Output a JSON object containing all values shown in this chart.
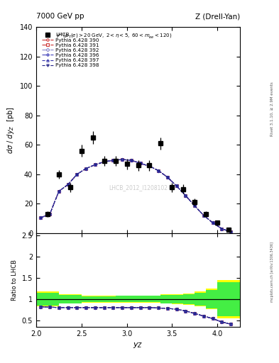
{
  "title_left": "7000 GeV pp",
  "title_right": "Z (Drell-Yan)",
  "watermark": "LHCB_2012_I1208102",
  "ylabel_main": "d#sigma / dy_{Z}  [pb]",
  "ylabel_ratio": "Ratio to LHCB",
  "xlabel": "y_{Z}",
  "ylim_main": [
    0,
    140
  ],
  "ylim_ratio": [
    0.35,
    2.55
  ],
  "yticks_main": [
    0,
    20,
    40,
    60,
    80,
    100,
    120,
    140
  ],
  "yticks_ratio": [
    0.5,
    1.0,
    1.5,
    2.0,
    2.5
  ],
  "xlim": [
    2.0,
    4.25
  ],
  "xticks": [
    2.0,
    2.5,
    3.0,
    3.5,
    4.0
  ],
  "lhcb_x": [
    2.125,
    2.25,
    2.375,
    2.5,
    2.625,
    2.75,
    2.875,
    3.0,
    3.125,
    3.25,
    3.375,
    3.5,
    3.625,
    3.75,
    3.875,
    4.0,
    4.125
  ],
  "lhcb_y": [
    13.0,
    40.0,
    31.0,
    56.0,
    65.0,
    49.0,
    49.0,
    47.0,
    46.0,
    46.0,
    61.0,
    31.0,
    30.0,
    21.0,
    13.0,
    7.0,
    2.5
  ],
  "lhcb_yerr": [
    2.0,
    3.0,
    3.0,
    4.0,
    4.5,
    3.5,
    3.5,
    3.5,
    3.5,
    3.5,
    4.0,
    3.0,
    3.0,
    2.5,
    2.0,
    1.5,
    1.0
  ],
  "pythia_x": [
    2.05,
    2.15,
    2.25,
    2.35,
    2.45,
    2.55,
    2.65,
    2.75,
    2.85,
    2.95,
    3.05,
    3.15,
    3.25,
    3.35,
    3.45,
    3.55,
    3.65,
    3.75,
    3.85,
    3.95,
    4.05,
    4.15
  ],
  "pythia_390_y": [
    10.5,
    13.0,
    28.5,
    33.0,
    40.0,
    44.0,
    46.5,
    48.5,
    49.5,
    50.0,
    49.5,
    47.5,
    45.5,
    42.5,
    38.0,
    32.0,
    25.5,
    18.5,
    12.0,
    7.0,
    3.0,
    0.8
  ],
  "pythia_391_y": [
    10.5,
    13.0,
    28.5,
    33.0,
    40.0,
    44.0,
    46.5,
    48.5,
    49.5,
    50.0,
    49.5,
    47.5,
    45.5,
    42.5,
    38.0,
    32.0,
    25.5,
    18.5,
    12.0,
    7.0,
    3.0,
    0.8
  ],
  "pythia_392_y": [
    10.5,
    13.0,
    28.5,
    33.0,
    40.0,
    44.0,
    46.5,
    48.5,
    49.5,
    50.0,
    49.5,
    47.5,
    45.5,
    42.5,
    38.0,
    32.0,
    25.5,
    18.5,
    12.0,
    7.0,
    3.0,
    0.8
  ],
  "pythia_396_y": [
    10.5,
    13.0,
    28.5,
    33.0,
    40.0,
    44.0,
    46.5,
    48.5,
    49.5,
    50.0,
    49.5,
    47.5,
    45.5,
    42.5,
    38.0,
    32.0,
    25.5,
    18.5,
    12.0,
    7.0,
    3.0,
    0.8
  ],
  "pythia_397_y": [
    10.5,
    13.0,
    28.5,
    33.0,
    40.0,
    44.0,
    46.5,
    48.5,
    49.5,
    50.0,
    49.5,
    47.5,
    45.5,
    42.5,
    38.0,
    32.0,
    25.5,
    18.5,
    12.0,
    7.0,
    3.0,
    0.8
  ],
  "pythia_398_y": [
    10.5,
    13.0,
    28.5,
    33.0,
    40.0,
    44.0,
    46.5,
    48.5,
    49.5,
    50.0,
    49.5,
    47.5,
    45.5,
    42.5,
    38.0,
    32.0,
    25.5,
    18.5,
    12.0,
    7.0,
    3.0,
    0.8
  ],
  "ratio_390": [
    0.82,
    0.81,
    0.8,
    0.8,
    0.8,
    0.8,
    0.8,
    0.8,
    0.8,
    0.8,
    0.8,
    0.8,
    0.8,
    0.79,
    0.78,
    0.76,
    0.72,
    0.66,
    0.6,
    0.54,
    0.46,
    0.41
  ],
  "ratio_391": [
    0.82,
    0.81,
    0.8,
    0.8,
    0.8,
    0.8,
    0.8,
    0.8,
    0.8,
    0.8,
    0.8,
    0.8,
    0.8,
    0.79,
    0.78,
    0.76,
    0.72,
    0.66,
    0.6,
    0.54,
    0.46,
    0.41
  ],
  "ratio_392": [
    0.82,
    0.81,
    0.8,
    0.8,
    0.8,
    0.8,
    0.8,
    0.8,
    0.8,
    0.8,
    0.8,
    0.8,
    0.8,
    0.79,
    0.78,
    0.76,
    0.72,
    0.66,
    0.6,
    0.54,
    0.46,
    0.41
  ],
  "ratio_396": [
    0.82,
    0.81,
    0.8,
    0.8,
    0.8,
    0.8,
    0.8,
    0.8,
    0.8,
    0.8,
    0.8,
    0.8,
    0.8,
    0.79,
    0.78,
    0.76,
    0.72,
    0.66,
    0.6,
    0.54,
    0.46,
    0.41
  ],
  "ratio_397": [
    0.82,
    0.81,
    0.8,
    0.8,
    0.8,
    0.8,
    0.8,
    0.8,
    0.8,
    0.8,
    0.8,
    0.8,
    0.8,
    0.79,
    0.78,
    0.76,
    0.72,
    0.66,
    0.6,
    0.54,
    0.46,
    0.41
  ],
  "ratio_398": [
    0.82,
    0.81,
    0.8,
    0.8,
    0.8,
    0.8,
    0.8,
    0.8,
    0.8,
    0.8,
    0.8,
    0.8,
    0.8,
    0.79,
    0.78,
    0.76,
    0.72,
    0.66,
    0.6,
    0.54,
    0.46,
    0.41
  ],
  "lhcb_band_x": [
    2.0,
    2.25,
    2.375,
    3.875,
    4.0,
    4.125,
    4.25
  ],
  "lhcb_band_green_lo": [
    0.9,
    0.9,
    0.9,
    0.9,
    0.65,
    0.32,
    0.32
  ],
  "lhcb_band_green_hi": [
    1.1,
    1.1,
    1.1,
    1.1,
    1.7,
    2.3,
    2.3
  ],
  "lhcb_band_yellow_lo": [
    0.85,
    0.85,
    0.85,
    0.85,
    0.6,
    0.28,
    0.28
  ],
  "lhcb_band_yellow_hi": [
    1.15,
    1.15,
    1.15,
    1.15,
    1.8,
    2.5,
    2.5
  ],
  "series_styles": [
    {
      "label": "Pythia 6.428 390",
      "color": "#cc3333",
      "linestyle": "-.",
      "marker": "o",
      "mfc": "none"
    },
    {
      "label": "Pythia 6.428 391",
      "color": "#cc3333",
      "linestyle": "-.",
      "marker": "s",
      "mfc": "none"
    },
    {
      "label": "Pythia 6.428 392",
      "color": "#8888cc",
      "linestyle": "-.",
      "marker": "D",
      "mfc": "none"
    },
    {
      "label": "Pythia 6.428 396",
      "color": "#4444bb",
      "linestyle": "-.",
      "marker": "P",
      "mfc": "none"
    },
    {
      "label": "Pythia 6.428 397",
      "color": "#3333aa",
      "linestyle": "--",
      "marker": "^",
      "mfc": "none"
    },
    {
      "label": "Pythia 6.428 398",
      "color": "#222288",
      "linestyle": "--",
      "marker": "v",
      "mfc": "none"
    }
  ]
}
